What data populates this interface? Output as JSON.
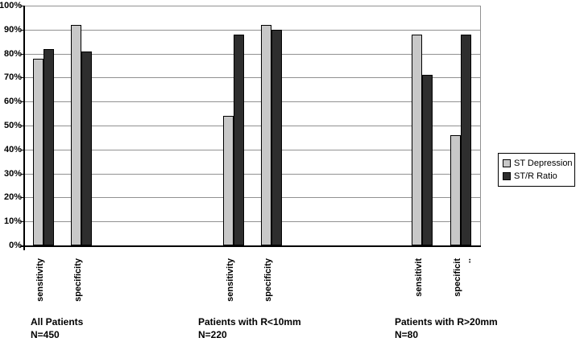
{
  "chart_data": {
    "type": "bar",
    "title": "",
    "xlabel": "",
    "ylabel": "",
    "ylim": [
      0,
      100
    ],
    "ytick_step": 10,
    "ytick_suffix": "%",
    "grid": true,
    "grid_color": "#919191",
    "axis_color": "#000000",
    "background": "#ffffff",
    "legend_position": "right",
    "legend": [
      "ST Depression",
      "ST/R Ratio"
    ],
    "series": [
      {
        "name": "ST Depression",
        "color": "#c8c8c8"
      },
      {
        "name": "ST/R Ratio",
        "color": "#2e2e2e"
      }
    ],
    "groups": [
      {
        "caption": [
          "All Patients",
          "N=450"
        ],
        "categories": [
          {
            "label": "sensitivity",
            "values": [
              78,
              82
            ]
          },
          {
            "label": "specificity",
            "values": [
              92,
              81
            ]
          }
        ]
      },
      {
        "caption": [
          "Patients with R<10mm",
          "N=220"
        ],
        "categories": [
          {
            "label": "sensitivity",
            "values": [
              54,
              88
            ]
          },
          {
            "label": "specificity",
            "values": [
              92,
              90
            ]
          }
        ]
      },
      {
        "caption": [
          "Patients with R>20mm",
          "N=80"
        ],
        "categories": [
          {
            "label": "sensitivit",
            "values": [
              88,
              71
            ]
          },
          {
            "label": "specificit",
            "suffix": "..",
            "values": [
              46,
              88
            ]
          }
        ]
      }
    ]
  }
}
